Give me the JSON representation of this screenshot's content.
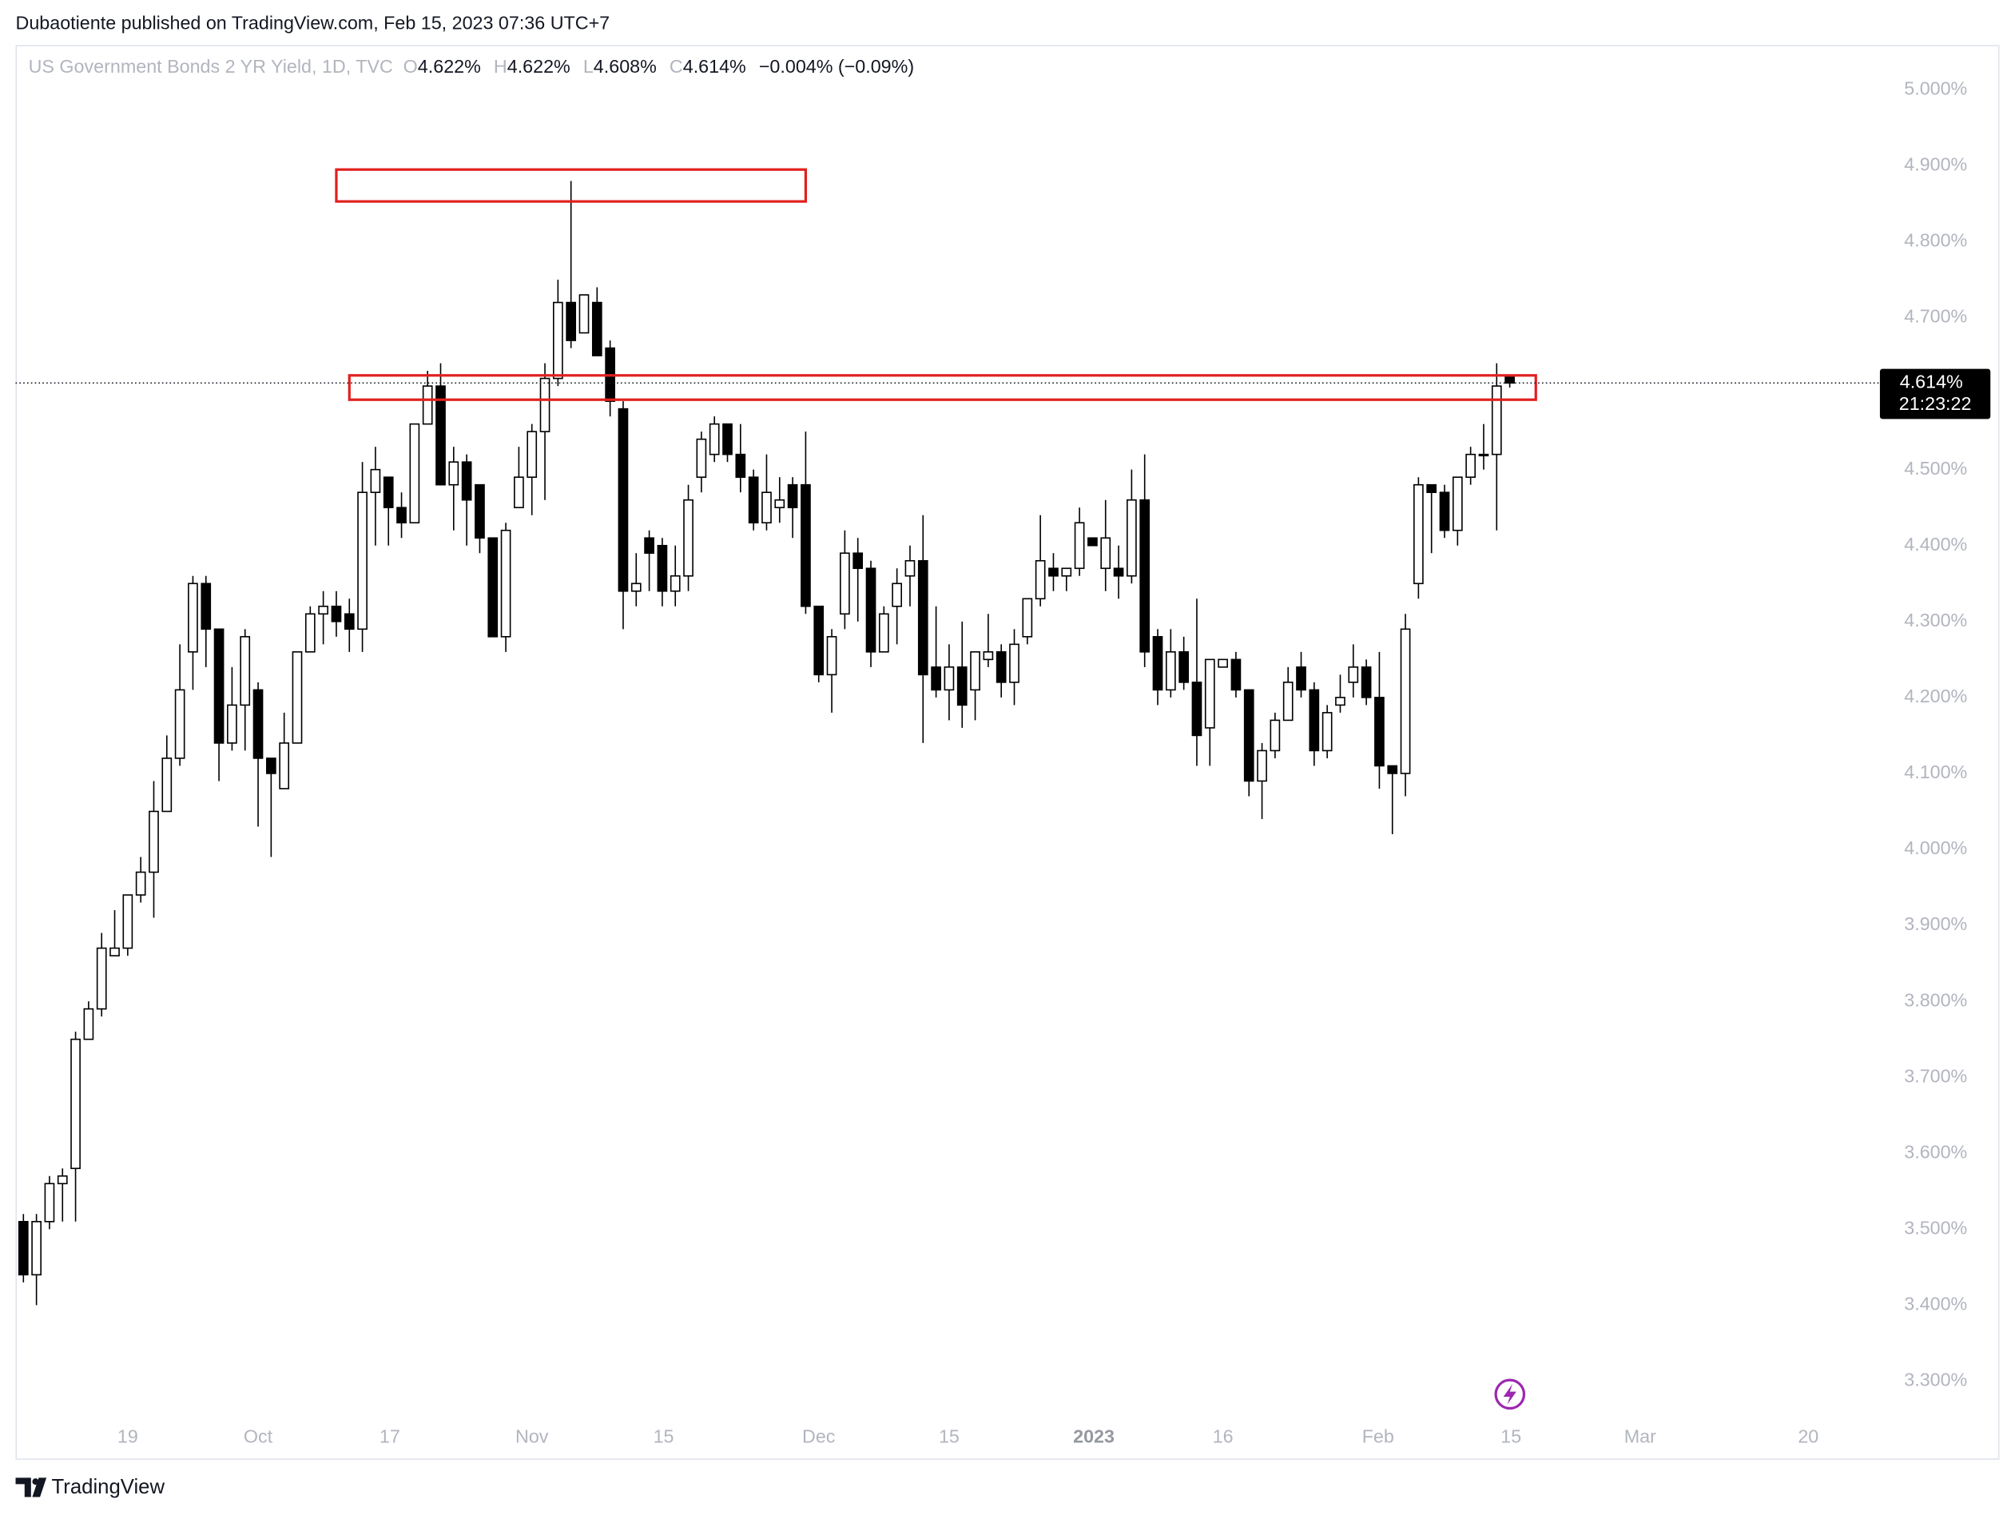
{
  "header": {
    "text": "Dubaotiente published on TradingView.com, Feb 15, 2023 07:36 UTC+7"
  },
  "chart_data": {
    "type": "candlestick",
    "legend": {
      "symbol": "US Government Bonds 2 YR Yield, 1D, TVC",
      "items": [
        {
          "key": "O",
          "value": "4.622%"
        },
        {
          "key": "H",
          "value": "4.622%"
        },
        {
          "key": "L",
          "value": "4.608%"
        },
        {
          "key": "C",
          "value": "4.614%"
        }
      ],
      "change": "−0.004% (−0.09%)"
    },
    "open": [
      3.51,
      3.44,
      3.51,
      3.56,
      3.58,
      3.75,
      3.79,
      3.86,
      3.87,
      3.94,
      3.97,
      4.05,
      4.12,
      4.26,
      4.35,
      4.29,
      4.14,
      4.19,
      4.21,
      4.12,
      4.08,
      4.14,
      4.26,
      4.31,
      4.32,
      4.31,
      4.29,
      4.47,
      4.49,
      4.45,
      4.43,
      4.56,
      4.61,
      4.48,
      4.51,
      4.48,
      4.41,
      4.28,
      4.45,
      4.49,
      4.55,
      4.62,
      4.72,
      4.68,
      4.72,
      4.66,
      4.58,
      4.34,
      4.41,
      4.4,
      4.34,
      4.36,
      4.49,
      4.52,
      4.56,
      4.52,
      4.49,
      4.43,
      4.45,
      4.48,
      4.48,
      4.32,
      4.23,
      4.31,
      4.39,
      4.37,
      4.26,
      4.32,
      4.36,
      4.38,
      4.24,
      4.21,
      4.24,
      4.21,
      4.25,
      4.26,
      4.22,
      4.28,
      4.33,
      4.37,
      4.36,
      4.37,
      4.41,
      4.37,
      4.37,
      4.36,
      4.46,
      4.28,
      4.21,
      4.26,
      4.22,
      4.16,
      4.24,
      4.25,
      4.21,
      4.09,
      4.13,
      4.17,
      4.24,
      4.21,
      4.13,
      4.19,
      4.22,
      4.24,
      4.2,
      4.11,
      4.1,
      4.35,
      4.48,
      4.47,
      4.42,
      4.49,
      4.52,
      4.52,
      4.622
    ],
    "high": [
      3.52,
      3.52,
      3.57,
      3.58,
      3.76,
      3.8,
      3.89,
      3.92,
      3.94,
      3.99,
      4.09,
      4.15,
      4.27,
      4.36,
      4.36,
      4.29,
      4.24,
      4.29,
      4.22,
      4.12,
      4.18,
      4.26,
      4.32,
      4.34,
      4.34,
      4.33,
      4.51,
      4.53,
      4.49,
      4.47,
      4.56,
      4.63,
      4.64,
      4.53,
      4.52,
      4.48,
      4.41,
      4.43,
      4.53,
      4.56,
      4.64,
      4.75,
      4.88,
      4.73,
      4.74,
      4.67,
      4.59,
      4.39,
      4.42,
      4.41,
      4.4,
      4.48,
      4.55,
      4.57,
      4.56,
      4.56,
      4.5,
      4.52,
      4.49,
      4.49,
      4.55,
      4.32,
      4.29,
      4.42,
      4.41,
      4.38,
      4.32,
      4.37,
      4.4,
      4.44,
      4.32,
      4.27,
      4.3,
      4.26,
      4.31,
      4.27,
      4.29,
      4.33,
      4.44,
      4.39,
      4.37,
      4.45,
      4.41,
      4.46,
      4.4,
      4.5,
      4.52,
      4.29,
      4.29,
      4.28,
      4.33,
      4.25,
      4.25,
      4.26,
      4.21,
      4.14,
      4.18,
      4.24,
      4.26,
      4.22,
      4.19,
      4.23,
      4.27,
      4.25,
      4.26,
      4.11,
      4.31,
      4.49,
      4.48,
      4.48,
      4.49,
      4.53,
      4.56,
      4.64,
      4.622
    ],
    "low": [
      3.43,
      3.4,
      3.5,
      3.51,
      3.51,
      3.75,
      3.78,
      3.86,
      3.86,
      3.93,
      3.91,
      4.05,
      4.11,
      4.21,
      4.24,
      4.09,
      4.13,
      4.13,
      4.03,
      3.99,
      4.08,
      4.14,
      4.26,
      4.27,
      4.28,
      4.26,
      4.26,
      4.4,
      4.4,
      4.41,
      4.43,
      4.56,
      4.48,
      4.42,
      4.4,
      4.39,
      4.28,
      4.26,
      4.45,
      4.44,
      4.46,
      4.61,
      4.66,
      4.68,
      4.65,
      4.57,
      4.29,
      4.32,
      4.34,
      4.32,
      4.32,
      4.34,
      4.47,
      4.51,
      4.51,
      4.47,
      4.42,
      4.42,
      4.43,
      4.41,
      4.31,
      4.22,
      4.18,
      4.29,
      4.3,
      4.24,
      4.26,
      4.27,
      4.32,
      4.14,
      4.2,
      4.17,
      4.16,
      4.17,
      4.24,
      4.2,
      4.19,
      4.27,
      4.32,
      4.34,
      4.34,
      4.36,
      4.4,
      4.34,
      4.33,
      4.35,
      4.24,
      4.19,
      4.2,
      4.21,
      4.11,
      4.11,
      4.24,
      4.2,
      4.07,
      4.04,
      4.12,
      4.17,
      4.2,
      4.11,
      4.12,
      4.18,
      4.2,
      4.19,
      4.08,
      4.02,
      4.07,
      4.33,
      4.39,
      4.41,
      4.4,
      4.48,
      4.5,
      4.42,
      4.608
    ],
    "close": [
      3.44,
      3.51,
      3.56,
      3.57,
      3.75,
      3.79,
      3.87,
      3.87,
      3.94,
      3.97,
      4.05,
      4.12,
      4.21,
      4.35,
      4.29,
      4.14,
      4.19,
      4.28,
      4.12,
      4.1,
      4.14,
      4.26,
      4.31,
      4.32,
      4.3,
      4.29,
      4.47,
      4.5,
      4.45,
      4.43,
      4.56,
      4.61,
      4.48,
      4.51,
      4.46,
      4.41,
      4.28,
      4.42,
      4.49,
      4.55,
      4.62,
      4.72,
      4.67,
      4.73,
      4.65,
      4.59,
      4.34,
      4.35,
      4.39,
      4.34,
      4.36,
      4.46,
      4.54,
      4.56,
      4.52,
      4.49,
      4.43,
      4.47,
      4.46,
      4.45,
      4.32,
      4.23,
      4.28,
      4.39,
      4.37,
      4.26,
      4.31,
      4.35,
      4.38,
      4.23,
      4.21,
      4.24,
      4.19,
      4.26,
      4.26,
      4.22,
      4.27,
      4.33,
      4.38,
      4.36,
      4.37,
      4.43,
      4.4,
      4.41,
      4.36,
      4.46,
      4.26,
      4.21,
      4.26,
      4.22,
      4.15,
      4.25,
      4.25,
      4.21,
      4.09,
      4.13,
      4.17,
      4.22,
      4.21,
      4.13,
      4.18,
      4.2,
      4.24,
      4.2,
      4.11,
      4.1,
      4.29,
      4.48,
      4.47,
      4.42,
      4.49,
      4.52,
      4.52,
      4.61,
      4.614
    ],
    "up_color": "#ffffff",
    "down_color": "#000000",
    "wick_color": "#000000",
    "xlim": [
      -0.6,
      141.9
    ],
    "xticks": [
      {
        "value": 8,
        "label": "19"
      },
      {
        "value": 18,
        "label": "Oct"
      },
      {
        "value": 28.1,
        "label": "17"
      },
      {
        "value": 39,
        "label": "Nov"
      },
      {
        "value": 49.1,
        "label": "15"
      },
      {
        "value": 61,
        "label": "Dec"
      },
      {
        "value": 71,
        "label": "15"
      },
      {
        "value": 82.1,
        "label": "2023"
      },
      {
        "value": 92,
        "label": "16"
      },
      {
        "value": 103.9,
        "label": "Feb"
      },
      {
        "value": 114.1,
        "label": "15"
      },
      {
        "value": 124,
        "label": "Mar"
      },
      {
        "value": 136.9,
        "label": "20"
      }
    ],
    "ylim": [
      3.254,
      5.059
    ],
    "yticks": [
      {
        "value": 5.0,
        "label": "5.000%"
      },
      {
        "value": 4.9,
        "label": "4.900%"
      },
      {
        "value": 4.8,
        "label": "4.800%"
      },
      {
        "value": 4.7,
        "label": "4.700%"
      },
      {
        "value": 4.6,
        "label": "4.600%"
      },
      {
        "value": 4.5,
        "label": "4.500%"
      },
      {
        "value": 4.4,
        "label": "4.400%"
      },
      {
        "value": 4.3,
        "label": "4.300%"
      },
      {
        "value": 4.2,
        "label": "4.200%"
      },
      {
        "value": 4.1,
        "label": "4.100%"
      },
      {
        "value": 4.0,
        "label": "4.000%"
      },
      {
        "value": 3.9,
        "label": "3.900%"
      },
      {
        "value": 3.8,
        "label": "3.800%"
      },
      {
        "value": 3.7,
        "label": "3.700%"
      },
      {
        "value": 3.6,
        "label": "3.600%"
      },
      {
        "value": 3.5,
        "label": "3.500%"
      },
      {
        "value": 3.4,
        "label": "3.400%"
      },
      {
        "value": 3.3,
        "label": "3.300%"
      }
    ],
    "grid": false,
    "zones": [
      {
        "x": [
          24,
          60
        ],
        "y": [
          4.853,
          4.895
        ]
      },
      {
        "x": [
          25,
          116
        ],
        "y": [
          4.592,
          4.624
        ]
      }
    ],
    "zone_color": "#e0201e",
    "last_price": {
      "value": 4.614,
      "label": "4.614%"
    },
    "countdown": "21:23:22"
  },
  "footer": {
    "brand": "TradingView"
  }
}
